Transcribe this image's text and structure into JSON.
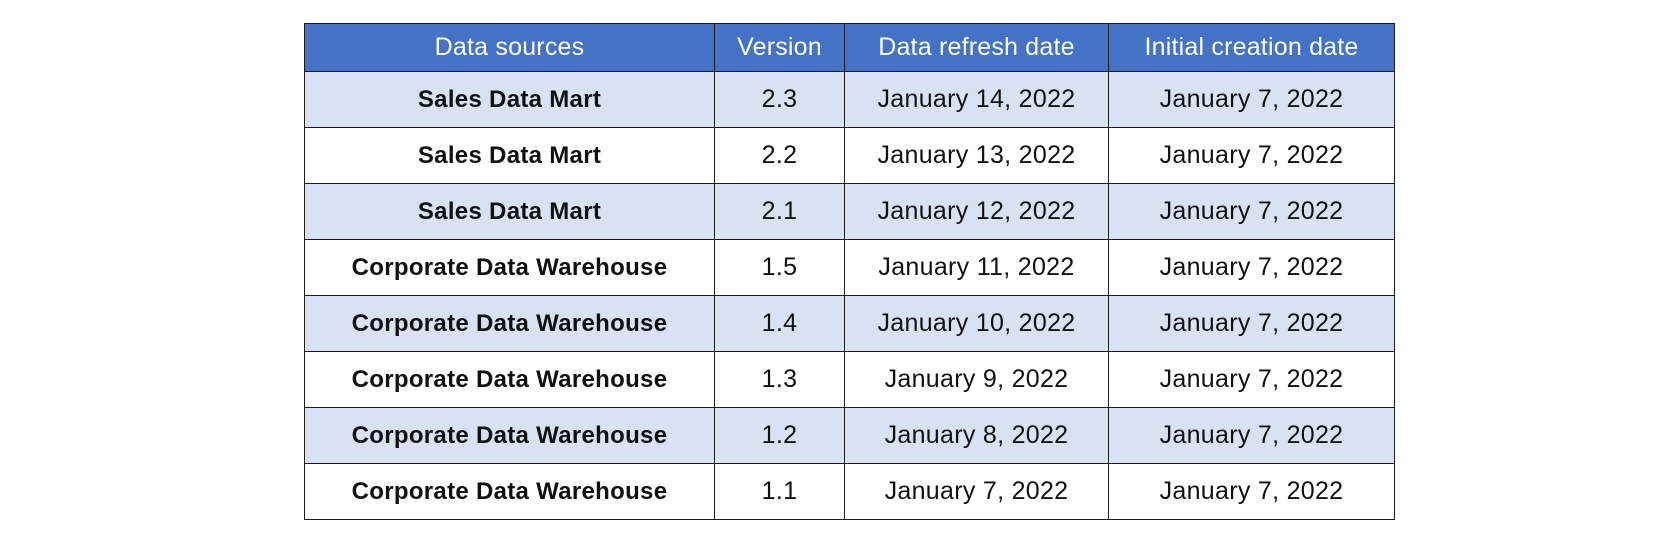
{
  "table": {
    "headers": [
      "Data sources",
      "Version",
      "Data refresh date",
      "Initial creation date"
    ],
    "rows": [
      [
        "Sales Data Mart",
        "2.3",
        "January 14, 2022",
        "January 7, 2022"
      ],
      [
        "Sales Data Mart",
        "2.2",
        "January 13, 2022",
        "January 7, 2022"
      ],
      [
        "Sales Data Mart",
        "2.1",
        "January 12, 2022",
        "January 7, 2022"
      ],
      [
        "Corporate Data Warehouse",
        "1.5",
        "January 11, 2022",
        "January 7, 2022"
      ],
      [
        "Corporate Data Warehouse",
        "1.4",
        "January 10, 2022",
        "January 7, 2022"
      ],
      [
        "Corporate Data Warehouse",
        "1.3",
        "January 9, 2022",
        "January 7, 2022"
      ],
      [
        "Corporate Data Warehouse",
        "1.2",
        "January 8, 2022",
        "January 7, 2022"
      ],
      [
        "Corporate Data Warehouse",
        "1.1",
        "January 7, 2022",
        "January 7, 2022"
      ]
    ]
  },
  "colors": {
    "header_background": "#4472c4",
    "header_text": "#ffffff",
    "shaded_row": "#d9e2f3",
    "plain_row": "#ffffff",
    "border": "#1b1b1b"
  }
}
